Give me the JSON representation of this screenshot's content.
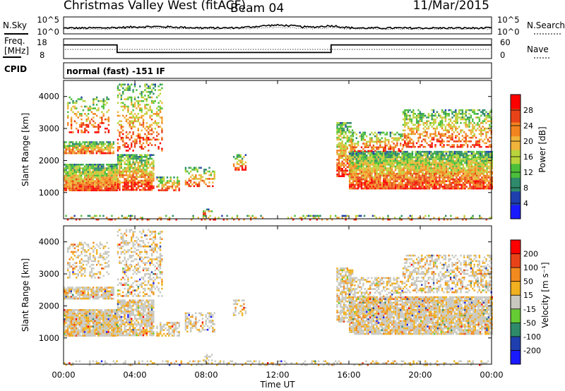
{
  "chart_data": {
    "type": "heatmap",
    "title": "Christmas Valley West (fitACF)",
    "beam": "Beam 04",
    "date": "11/Mar/2015",
    "mode_text": "normal (fast) -151 IF",
    "xlabel": "Time UT",
    "x_ticks": [
      "00:00",
      "04:00",
      "08:00",
      "12:00",
      "16:00",
      "20:00",
      "00:00"
    ],
    "xlim_hours": [
      0,
      24
    ],
    "noise_panel": {
      "left_label": "N.Sky",
      "right_label": "N.Search",
      "left_ticks": [
        "10^5",
        "10^0"
      ],
      "right_ticks": [
        "10^5",
        "10^0"
      ]
    },
    "freq_panel": {
      "left_label_line1": "Freq.",
      "left_label_line2": "[MHz]",
      "right_label": "Nave",
      "left_ticks": [
        18,
        8
      ],
      "right_ticks": [
        60,
        0
      ],
      "frequency_steps": [
        {
          "start_hour": 0,
          "end_hour": 3,
          "mhz": 16
        },
        {
          "start_hour": 3,
          "end_hour": 15,
          "mhz": 10
        },
        {
          "start_hour": 15,
          "end_hour": 24,
          "mhz": 16
        }
      ]
    },
    "cpid_label": "CPID",
    "panels": [
      {
        "name": "power",
        "ylabel": "Slant Range [km]",
        "ylim": [
          180,
          4500
        ],
        "y_ticks": [
          1000,
          2000,
          3000,
          4000
        ],
        "colorbar_label": "Power [dB]",
        "colorbar_ticks": [
          4,
          8,
          12,
          16,
          20,
          24,
          28
        ],
        "colorbar_colors": [
          "#1a1aff",
          "#1f3fae",
          "#2e8a6a",
          "#4cbf3a",
          "#b8d43c",
          "#f0b43a",
          "#f2841f",
          "#e84318",
          "#ff0000"
        ]
      },
      {
        "name": "velocity",
        "ylabel": "Slant Range [km]",
        "ylim": [
          180,
          4500
        ],
        "y_ticks": [
          1000,
          2000,
          3000,
          4000
        ],
        "colorbar_label": "Velocity [m s⁻¹]",
        "colorbar_ticks": [
          200,
          100,
          50,
          15,
          -15,
          -50,
          -100,
          -200
        ],
        "colorbar_colors": [
          "#1a1aff",
          "#1f3fae",
          "#2e8a6a",
          "#66cc33",
          "#c8c8c0",
          "#f0b020",
          "#f28a1f",
          "#e84318",
          "#ff0000"
        ]
      }
    ]
  }
}
